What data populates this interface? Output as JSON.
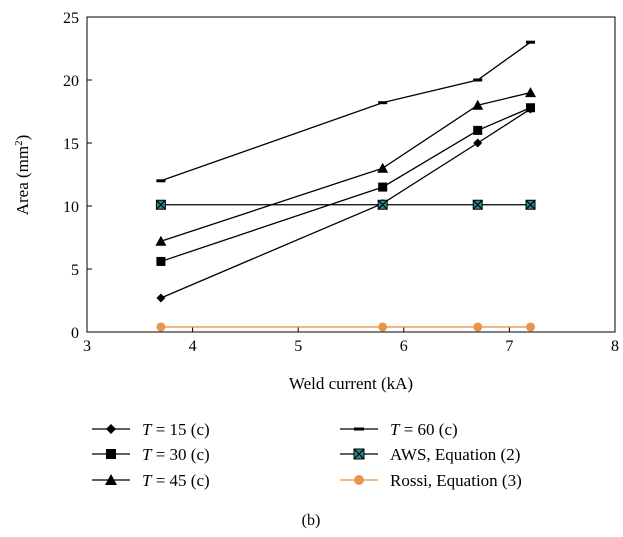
{
  "chart_data": {
    "type": "line",
    "title": "",
    "xlabel": "Weld current (kA)",
    "ylabel_prefix": "Area (mm",
    "ylabel_sup": "2",
    "ylabel_suffix": ")",
    "xlim": [
      3,
      8
    ],
    "ylim": [
      0,
      25
    ],
    "xticks": [
      "3",
      "4",
      "5",
      "6",
      "7",
      "8"
    ],
    "yticks": [
      "0",
      "5",
      "10",
      "15",
      "20",
      "25"
    ],
    "grid": false,
    "legend_position": "bottom",
    "x": [
      3.7,
      5.8,
      6.7,
      7.2
    ],
    "series": [
      {
        "name_var": "T",
        "name_rest": " = 15 (c)",
        "marker": "diamond",
        "color": "#000000",
        "values": [
          2.7,
          10.2,
          15.0,
          17.7
        ]
      },
      {
        "name_var": "T",
        "name_rest": " = 30 (c)",
        "marker": "square",
        "color": "#000000",
        "values": [
          5.6,
          11.5,
          16.0,
          17.8
        ]
      },
      {
        "name_var": "T",
        "name_rest": " = 45 (c)",
        "marker": "triangle",
        "color": "#000000",
        "values": [
          7.2,
          13.0,
          18.0,
          19.0
        ]
      },
      {
        "name_var": "T",
        "name_rest": " = 60 (c)",
        "marker": "dash",
        "color": "#000000",
        "values": [
          12.0,
          18.2,
          20.0,
          23.0
        ]
      },
      {
        "name_var": "",
        "name_rest": "AWS, Equation (2)",
        "marker": "xsquare",
        "color": "#000000",
        "marker_fill": "#2a8a8a",
        "values": [
          10.1,
          10.1,
          10.1,
          10.1
        ]
      },
      {
        "name_var": "",
        "name_rest": "Rossi, Equation (3)",
        "marker": "circle",
        "color": "#e8954a",
        "values": [
          0.4,
          0.4,
          0.4,
          0.4
        ]
      }
    ]
  },
  "caption": "(b)"
}
